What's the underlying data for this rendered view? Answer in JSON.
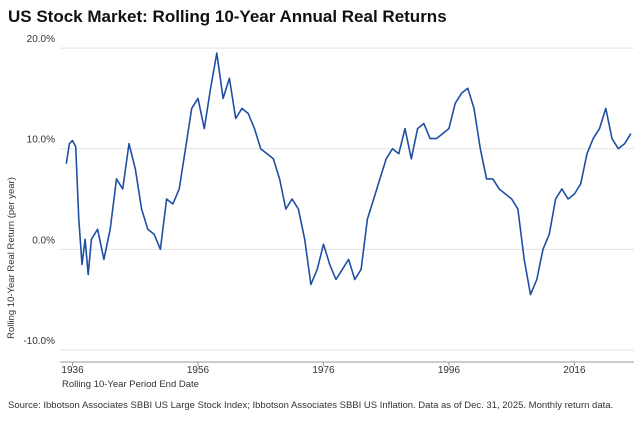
{
  "chart_data": {
    "type": "line",
    "title": "US Stock Market: Rolling 10-Year Annual Real Returns",
    "y_label": "Rolling 10-Year Real Return (per year)",
    "x_label": "Rolling 10-Year Period End Date",
    "source": "Source: Ibbotson Associates SBBI US Large Stock Index; Ibbotson Associates SBBI US Inflation. Data as of Dec. 31, 2025. Monthly return data.",
    "x": [
      1935,
      1935.5,
      1936,
      1936.5,
      1937,
      1937.5,
      1938,
      1938.5,
      1939,
      1940,
      1941,
      1942,
      1943,
      1944,
      1945,
      1946,
      1947,
      1948,
      1949,
      1950,
      1951,
      1952,
      1953,
      1954,
      1955,
      1956,
      1957,
      1958,
      1959,
      1960,
      1961,
      1962,
      1963,
      1964,
      1965,
      1966,
      1967,
      1968,
      1969,
      1970,
      1971,
      1972,
      1973,
      1974,
      1975,
      1976,
      1977,
      1978,
      1979,
      1980,
      1981,
      1982,
      1983,
      1984,
      1985,
      1986,
      1987,
      1988,
      1989,
      1990,
      1991,
      1992,
      1993,
      1994,
      1995,
      1996,
      1997,
      1998,
      1999,
      2000,
      2001,
      2002,
      2003,
      2004,
      2005,
      2006,
      2007,
      2008,
      2009,
      2010,
      2011,
      2012,
      2013,
      2014,
      2015,
      2016,
      2017,
      2018,
      2019,
      2020,
      2021,
      2022,
      2023,
      2024,
      2025
    ],
    "series": [
      {
        "color": "#1f4fa3",
        "values": [
          8.5,
          10.5,
          10.8,
          10.2,
          3,
          -1.5,
          1,
          -2.5,
          1,
          2,
          -1,
          2,
          7,
          6,
          10.5,
          8,
          4,
          2,
          1.5,
          0,
          5,
          4.5,
          6,
          10,
          14,
          15,
          12,
          16,
          19.5,
          15,
          17,
          13,
          14,
          13.5,
          12,
          10,
          9.5,
          9,
          7,
          4,
          5,
          4,
          1,
          -3.5,
          -2,
          0.5,
          -1.5,
          -3,
          -2,
          -1,
          -3,
          -2,
          3,
          5,
          7,
          9,
          10,
          9.5,
          12,
          9,
          12,
          12.5,
          11,
          11,
          11.5,
          12,
          14.5,
          15.5,
          16,
          14,
          10,
          7,
          7,
          6,
          5.5,
          5,
          4,
          -1,
          -4.5,
          -3,
          0,
          1.5,
          5,
          6,
          5,
          5.5,
          6.5,
          9.5,
          11,
          12,
          14,
          11,
          10,
          10.5,
          11.5
        ]
      }
    ],
    "xlim": [
      1934,
      2025.5
    ],
    "xticks": [
      1936,
      1956,
      1976,
      1996,
      2016
    ],
    "ylim": [
      -11,
      21
    ],
    "yticks": [
      {
        "value": -10,
        "label": "-10.0%"
      },
      {
        "value": 0,
        "label": "0.0%"
      },
      {
        "value": 10,
        "label": "10.0%"
      },
      {
        "value": 20,
        "label": "20.0%"
      }
    ],
    "grid": true
  }
}
